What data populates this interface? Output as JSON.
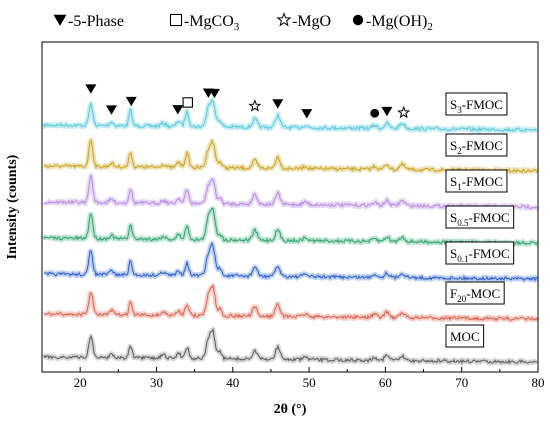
{
  "chart_data": {
    "type": "line",
    "xlabel": "2θ (°)",
    "ylabel": "Intensity (counts)",
    "xlim": [
      15,
      80
    ],
    "xticks": [
      20,
      30,
      40,
      50,
      60,
      70,
      80
    ],
    "grid": false,
    "legend": {
      "placement": "top",
      "items": [
        {
          "marker": "filled-down-triangle",
          "label": "-5-Phase"
        },
        {
          "marker": "open-square",
          "label": "-MgCO",
          "sub": "3",
          "suffix": ""
        },
        {
          "marker": "open-star",
          "label": "-MgO"
        },
        {
          "marker": "filled-circle",
          "label": "-Mg(OH)",
          "sub": "2",
          "suffix": ""
        }
      ]
    },
    "peaks": [
      {
        "x": 21.4,
        "h": 0.95,
        "w": 0.25
      },
      {
        "x": 24.1,
        "h": 0.15,
        "w": 0.25
      },
      {
        "x": 26.6,
        "h": 0.55,
        "w": 0.2
      },
      {
        "x": 30.9,
        "h": 0.12,
        "w": 0.3
      },
      {
        "x": 32.9,
        "h": 0.2,
        "w": 0.25
      },
      {
        "x": 34.0,
        "h": 0.5,
        "w": 0.25
      },
      {
        "x": 36.8,
        "h": 0.7,
        "w": 0.3
      },
      {
        "x": 37.4,
        "h": 1.0,
        "w": 0.3
      },
      {
        "x": 38.3,
        "h": 0.25,
        "w": 0.25
      },
      {
        "x": 42.9,
        "h": 0.35,
        "w": 0.3
      },
      {
        "x": 45.9,
        "h": 0.45,
        "w": 0.3
      },
      {
        "x": 49.5,
        "h": 0.1,
        "w": 0.3
      },
      {
        "x": 58.6,
        "h": 0.12,
        "w": 0.3
      },
      {
        "x": 60.2,
        "h": 0.2,
        "w": 0.3
      },
      {
        "x": 62.2,
        "h": 0.18,
        "w": 0.35
      }
    ],
    "peak_markers": [
      {
        "x": 21.4,
        "marker": "filled-down-triangle"
      },
      {
        "x": 24.1,
        "marker": "filled-down-triangle"
      },
      {
        "x": 26.7,
        "marker": "filled-down-triangle"
      },
      {
        "x": 32.8,
        "marker": "filled-down-triangle"
      },
      {
        "x": 34.1,
        "marker": "open-square"
      },
      {
        "x": 36.8,
        "marker": "filled-down-triangle"
      },
      {
        "x": 37.6,
        "marker": "filled-down-triangle"
      },
      {
        "x": 42.9,
        "marker": "open-star"
      },
      {
        "x": 45.9,
        "marker": "filled-down-triangle"
      },
      {
        "x": 49.7,
        "marker": "filled-down-triangle"
      },
      {
        "x": 58.6,
        "marker": "filled-circle"
      },
      {
        "x": 60.2,
        "marker": "filled-down-triangle"
      },
      {
        "x": 62.4,
        "marker": "open-star"
      }
    ],
    "series": [
      {
        "label": "S",
        "sub": "3",
        "suffix": "-FMOC",
        "color": "#5bc8d8",
        "band": "#a9e6ee",
        "scale": 0.5
      },
      {
        "label": "S",
        "sub": "2",
        "suffix": "-FMOC",
        "color": "#c6a31e",
        "band": "#e8d69a",
        "scale": 0.5
      },
      {
        "label": "S",
        "sub": "1",
        "suffix": "-FMOC",
        "color": "#b58de0",
        "band": "#dcc8f2",
        "scale": 0.5
      },
      {
        "label": "S",
        "sub": "0.5",
        "suffix": "-FMOC",
        "color": "#2f9e72",
        "band": "#9fd8bd",
        "scale": 0.5
      },
      {
        "label": "S",
        "sub": "0.1",
        "suffix": "-FMOC",
        "color": "#2a5ccc",
        "band": "#a6bdf0",
        "scale": 0.5
      },
      {
        "label": "F",
        "sub": "20",
        "suffix": "-MOC",
        "color": "#d9614f",
        "band": "#f2bcb1",
        "scale": 0.5
      },
      {
        "label": "MOC",
        "sub": "",
        "suffix": "",
        "color": "#5a5a5a",
        "band": "#c4c4c4",
        "scale": 0.5
      }
    ]
  }
}
